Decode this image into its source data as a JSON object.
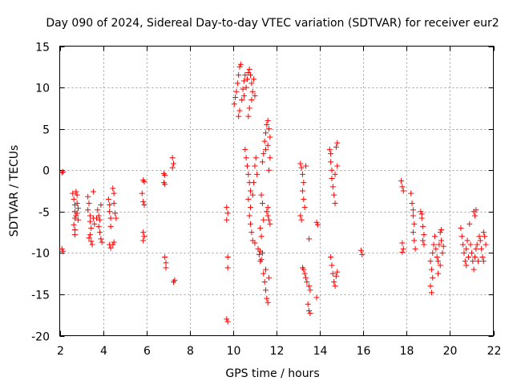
{
  "chart_data": {
    "type": "scatter",
    "title": "Day 090 of 2024, Sidereal Day-to-day VTEC variation (SDTVAR) for receiver eur2",
    "xlabel": "GPS time / hours",
    "ylabel": "SDTVAR / TECUs",
    "xlim": [
      2,
      22
    ],
    "ylim": [
      -20,
      15
    ],
    "xticks": [
      2,
      4,
      6,
      8,
      10,
      12,
      14,
      16,
      18,
      20,
      22
    ],
    "yticks": [
      -20,
      -15,
      -10,
      -5,
      0,
      5,
      10,
      15
    ],
    "grid": true,
    "legend": "none",
    "marker": "+",
    "colors": {
      "points": "#ff0000",
      "axes": "#000000",
      "grid": "#a0a0a0"
    },
    "series": [
      {
        "name": "eur2",
        "points": [
          [
            2.1,
            -0.3
          ],
          [
            2.15,
            -0.2
          ],
          [
            2.1,
            -9.5
          ],
          [
            2.15,
            -9.8
          ],
          [
            2.6,
            -2.8
          ],
          [
            2.65,
            -3.5
          ],
          [
            2.7,
            -4.2
          ],
          [
            2.7,
            -5.0
          ],
          [
            2.7,
            -5.8
          ],
          [
            2.65,
            -6.6
          ],
          [
            2.7,
            -7.2
          ],
          [
            2.7,
            -7.8
          ],
          [
            2.75,
            -2.6
          ],
          [
            2.8,
            -3.0
          ],
          [
            2.8,
            -4.0
          ],
          [
            2.8,
            -5.2
          ],
          [
            2.85,
            -6.0
          ],
          [
            2.85,
            -4.6
          ],
          [
            2.75,
            -5.5
          ],
          [
            3.3,
            -3.2
          ],
          [
            3.35,
            -4.0
          ],
          [
            3.3,
            -4.8
          ],
          [
            3.4,
            -5.5
          ],
          [
            3.4,
            -6.2
          ],
          [
            3.45,
            -7.0
          ],
          [
            3.4,
            -7.8
          ],
          [
            3.45,
            -8.6
          ],
          [
            3.5,
            -9.0
          ],
          [
            3.55,
            -2.6
          ],
          [
            3.55,
            -5.8
          ],
          [
            3.6,
            -6.5
          ],
          [
            3.35,
            -8.2
          ],
          [
            3.75,
            -4.8
          ],
          [
            3.8,
            -5.5
          ],
          [
            3.85,
            -6.0
          ],
          [
            3.8,
            -6.8
          ],
          [
            3.85,
            -7.5
          ],
          [
            3.9,
            -8.3
          ],
          [
            3.95,
            -8.7
          ],
          [
            3.9,
            -4.2
          ],
          [
            3.7,
            -5.8
          ],
          [
            4.25,
            -3.5
          ],
          [
            4.3,
            -4.2
          ],
          [
            4.3,
            -5.0
          ],
          [
            4.35,
            -5.8
          ],
          [
            4.35,
            -6.8
          ],
          [
            4.3,
            -9.0
          ],
          [
            4.35,
            -9.4
          ],
          [
            4.45,
            -2.2
          ],
          [
            4.5,
            -2.8
          ],
          [
            4.5,
            -4.0
          ],
          [
            4.55,
            -5.2
          ],
          [
            4.6,
            -5.8
          ],
          [
            4.5,
            -8.7
          ],
          [
            4.45,
            -9.0
          ],
          [
            5.85,
            -1.2
          ],
          [
            5.9,
            -1.4
          ],
          [
            5.8,
            -2.8
          ],
          [
            5.85,
            -3.8
          ],
          [
            5.9,
            -4.2
          ],
          [
            5.85,
            -7.5
          ],
          [
            5.9,
            -8.0
          ],
          [
            5.85,
            -8.5
          ],
          [
            6.8,
            -0.4
          ],
          [
            6.85,
            -0.6
          ],
          [
            6.8,
            -1.5
          ],
          [
            6.85,
            -1.7
          ],
          [
            6.85,
            -10.5
          ],
          [
            6.9,
            -11.2
          ],
          [
            6.9,
            -11.8
          ],
          [
            7.2,
            1.5
          ],
          [
            7.25,
            0.8
          ],
          [
            7.2,
            0.3
          ],
          [
            7.3,
            -13.3
          ],
          [
            7.25,
            -13.5
          ],
          [
            9.7,
            -4.5
          ],
          [
            9.75,
            -5.2
          ],
          [
            9.7,
            -6.0
          ],
          [
            9.75,
            -10.5
          ],
          [
            9.75,
            -11.8
          ],
          [
            9.7,
            -18.0
          ],
          [
            9.75,
            -18.3
          ],
          [
            10.05,
            8.0
          ],
          [
            10.1,
            8.8
          ],
          [
            10.15,
            9.5
          ],
          [
            10.2,
            10.5
          ],
          [
            10.25,
            11.5
          ],
          [
            10.3,
            12.5
          ],
          [
            10.35,
            12.8
          ],
          [
            10.25,
            6.5
          ],
          [
            10.3,
            7.2
          ],
          [
            10.4,
            8.5
          ],
          [
            10.45,
            9.8
          ],
          [
            10.5,
            10.8
          ],
          [
            10.55,
            11.5
          ],
          [
            10.5,
            9.0
          ],
          [
            10.6,
            10.0
          ],
          [
            10.65,
            11.0
          ],
          [
            10.7,
            11.8
          ],
          [
            10.75,
            12.2
          ],
          [
            10.8,
            11.5
          ],
          [
            10.85,
            10.5
          ],
          [
            10.9,
            9.5
          ],
          [
            10.85,
            8.5
          ],
          [
            10.75,
            7.5
          ],
          [
            10.7,
            6.5
          ],
          [
            10.95,
            11.0
          ],
          [
            11.0,
            9.0
          ],
          [
            10.55,
            2.5
          ],
          [
            10.6,
            1.5
          ],
          [
            10.65,
            0.5
          ],
          [
            10.7,
            -0.5
          ],
          [
            10.75,
            -1.5
          ],
          [
            10.8,
            -2.5
          ],
          [
            10.7,
            -3.5
          ],
          [
            10.8,
            -4.5
          ],
          [
            10.75,
            -5.5
          ],
          [
            10.8,
            -6.5
          ],
          [
            10.85,
            -7.5
          ],
          [
            10.9,
            -8.5
          ],
          [
            11.0,
            -8.8
          ],
          [
            10.9,
            -3.0
          ],
          [
            10.95,
            -1.5
          ],
          [
            11.0,
            0.5
          ],
          [
            11.05,
            1.5
          ],
          [
            11.1,
            -0.5
          ],
          [
            11.15,
            -9.5
          ],
          [
            11.2,
            -10.2
          ],
          [
            11.3,
            -10.8
          ],
          [
            11.25,
            -9.8
          ],
          [
            11.35,
            1.0
          ],
          [
            11.4,
            2.0
          ],
          [
            11.45,
            3.5
          ],
          [
            11.5,
            4.5
          ],
          [
            11.55,
            5.5
          ],
          [
            11.6,
            6.0
          ],
          [
            11.65,
            5.0
          ],
          [
            11.7,
            4.0
          ],
          [
            11.6,
            3.0
          ],
          [
            11.5,
            2.5
          ],
          [
            11.7,
            1.5
          ],
          [
            11.65,
            0.0
          ],
          [
            11.4,
            -12.5
          ],
          [
            11.45,
            -13.5
          ],
          [
            11.5,
            -14.5
          ],
          [
            11.55,
            -15.5
          ],
          [
            11.6,
            -16.0
          ],
          [
            11.65,
            -13.0
          ],
          [
            11.5,
            -12.0
          ],
          [
            11.55,
            -5.0
          ],
          [
            11.6,
            -5.5
          ],
          [
            11.65,
            -6.0
          ],
          [
            11.7,
            -6.5
          ],
          [
            11.6,
            -4.5
          ],
          [
            11.3,
            -3.0
          ],
          [
            11.35,
            -4.0
          ],
          [
            11.4,
            -6.0
          ],
          [
            11.25,
            -7.0
          ],
          [
            11.3,
            -8.0
          ],
          [
            11.25,
            -11.0
          ],
          [
            11.35,
            -10.0
          ],
          [
            13.1,
            0.8
          ],
          [
            13.15,
            0.3
          ],
          [
            13.2,
            -0.5
          ],
          [
            13.25,
            -1.5
          ],
          [
            13.2,
            -2.5
          ],
          [
            13.25,
            -3.5
          ],
          [
            13.3,
            -4.5
          ],
          [
            13.1,
            -5.5
          ],
          [
            13.15,
            -6.0
          ],
          [
            13.35,
            0.5
          ],
          [
            13.2,
            -11.8
          ],
          [
            13.25,
            -12.0
          ],
          [
            13.3,
            -12.5
          ],
          [
            13.35,
            -13.0
          ],
          [
            13.4,
            -13.5
          ],
          [
            13.5,
            -14.0
          ],
          [
            13.55,
            -14.5
          ],
          [
            13.45,
            -16.2
          ],
          [
            13.5,
            -17.0
          ],
          [
            13.55,
            -17.3
          ],
          [
            13.5,
            -8.3
          ],
          [
            13.85,
            -6.3
          ],
          [
            13.9,
            -6.6
          ],
          [
            13.85,
            -15.4
          ],
          [
            14.45,
            2.5
          ],
          [
            14.5,
            2.0
          ],
          [
            14.5,
            1.0
          ],
          [
            14.55,
            0.0
          ],
          [
            14.55,
            -1.0
          ],
          [
            14.6,
            -2.0
          ],
          [
            14.65,
            -3.0
          ],
          [
            14.7,
            -4.0
          ],
          [
            14.75,
            2.8
          ],
          [
            14.8,
            3.3
          ],
          [
            14.7,
            -0.5
          ],
          [
            14.8,
            0.5
          ],
          [
            14.5,
            -10.5
          ],
          [
            14.55,
            -11.5
          ],
          [
            14.6,
            -12.5
          ],
          [
            14.65,
            -13.5
          ],
          [
            14.7,
            -14.0
          ],
          [
            14.75,
            -12.8
          ],
          [
            14.8,
            -12.3
          ],
          [
            15.9,
            -9.7
          ],
          [
            15.95,
            -10.2
          ],
          [
            17.75,
            -1.3
          ],
          [
            17.8,
            -2.0
          ],
          [
            17.85,
            -2.5
          ],
          [
            17.8,
            -8.8
          ],
          [
            17.85,
            -9.5
          ],
          [
            17.8,
            -9.9
          ],
          [
            18.2,
            -2.8
          ],
          [
            18.25,
            -4.0
          ],
          [
            18.3,
            -5.5
          ],
          [
            18.35,
            -6.5
          ],
          [
            18.3,
            -7.5
          ],
          [
            18.35,
            -8.5
          ],
          [
            18.4,
            -9.5
          ],
          [
            18.3,
            -4.8
          ],
          [
            18.65,
            -5.0
          ],
          [
            18.7,
            -5.8
          ],
          [
            18.75,
            -6.8
          ],
          [
            18.8,
            -7.8
          ],
          [
            18.75,
            -8.5
          ],
          [
            18.8,
            -9.0
          ],
          [
            18.7,
            -5.3
          ],
          [
            19.1,
            -11.0
          ],
          [
            19.15,
            -12.0
          ],
          [
            19.2,
            -13.0
          ],
          [
            19.1,
            -14.0
          ],
          [
            19.15,
            -14.8
          ],
          [
            19.2,
            -10.0
          ],
          [
            19.25,
            -9.0
          ],
          [
            19.3,
            -8.0
          ],
          [
            19.35,
            -9.5
          ],
          [
            19.4,
            -10.5
          ],
          [
            19.45,
            -11.0
          ],
          [
            19.5,
            -9.0
          ],
          [
            19.55,
            -7.5
          ],
          [
            19.6,
            -8.5
          ],
          [
            19.65,
            -10.0
          ],
          [
            19.55,
            -11.5
          ],
          [
            19.45,
            -12.5
          ],
          [
            19.7,
            -9.2
          ],
          [
            19.6,
            -7.2
          ],
          [
            20.5,
            -7.0
          ],
          [
            20.55,
            -8.0
          ],
          [
            20.6,
            -9.0
          ],
          [
            20.65,
            -10.0
          ],
          [
            20.7,
            -11.0
          ],
          [
            20.75,
            -9.5
          ],
          [
            20.8,
            -8.5
          ],
          [
            20.85,
            -10.5
          ],
          [
            20.9,
            -6.5
          ],
          [
            20.95,
            -9.0
          ],
          [
            20.75,
            -11.5
          ],
          [
            21.0,
            -10.0
          ],
          [
            21.05,
            -11.0
          ],
          [
            21.1,
            -12.0
          ],
          [
            21.15,
            -10.5
          ],
          [
            21.2,
            -9.5
          ],
          [
            21.1,
            -5.0
          ],
          [
            21.15,
            -5.5
          ],
          [
            21.2,
            -4.8
          ],
          [
            21.25,
            -9.0
          ],
          [
            21.3,
            -11.0
          ],
          [
            21.35,
            -8.0
          ],
          [
            21.4,
            -8.5
          ],
          [
            21.45,
            -9.5
          ],
          [
            21.5,
            -10.5
          ],
          [
            21.55,
            -11.0
          ],
          [
            21.6,
            -8.0
          ],
          [
            21.65,
            -9.0
          ],
          [
            21.55,
            -7.5
          ]
        ]
      }
    ]
  }
}
